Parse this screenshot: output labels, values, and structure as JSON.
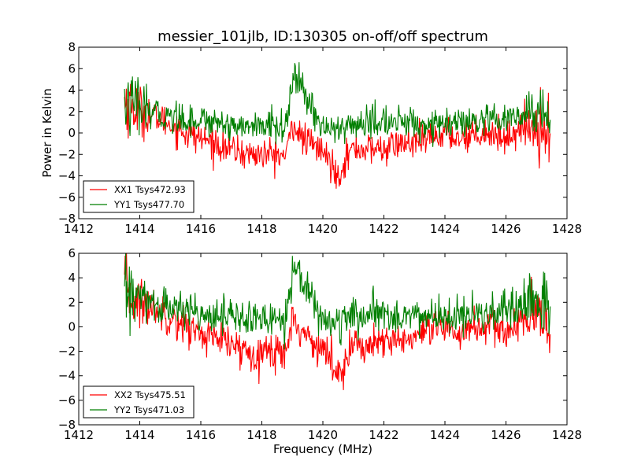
{
  "chart_data": [
    {
      "type": "line",
      "title": "messier_101jlb, ID:130305 on-off/off spectrum",
      "xlabel": "",
      "ylabel": "Power in Kelvin",
      "xlim": [
        1412,
        1428
      ],
      "ylim": [
        -8,
        8
      ],
      "xticks": [
        1412,
        1414,
        1416,
        1418,
        1420,
        1422,
        1424,
        1426,
        1428
      ],
      "yticks": [
        -8,
        -6,
        -4,
        -2,
        0,
        2,
        4,
        6,
        8
      ],
      "xtick_labels": [
        "1412",
        "1414",
        "1416",
        "1418",
        "1420",
        "1422",
        "1424",
        "1426",
        "1428"
      ],
      "ytick_labels": [
        "−8",
        "−6",
        "−4",
        "−2",
        "0",
        "2",
        "4",
        "6",
        "8"
      ],
      "legend_position": "lower-left",
      "series": [
        {
          "name": "XX1 Tsys472.93",
          "color": "#ff0000",
          "x": [
            1413.5,
            1414.0,
            1414.5,
            1415.0,
            1415.5,
            1416.0,
            1416.5,
            1417.0,
            1417.5,
            1418.0,
            1418.5,
            1418.8,
            1419.0,
            1419.3,
            1419.6,
            1419.9,
            1420.2,
            1420.5,
            1420.8,
            1421.0,
            1421.5,
            1422.0,
            1422.5,
            1423.0,
            1423.5,
            1424.0,
            1424.5,
            1425.0,
            1425.5,
            1426.0,
            1426.5,
            1427.0,
            1427.45
          ],
          "values": [
            3.0,
            2.0,
            1.5,
            0.8,
            0.0,
            -0.5,
            -1.0,
            -1.5,
            -2.0,
            -2.0,
            -2.0,
            -2.2,
            1.0,
            -0.5,
            -1.0,
            -1.5,
            -2.5,
            -4.0,
            -2.0,
            -1.5,
            -1.5,
            -1.5,
            -1.0,
            -1.0,
            -0.5,
            0.0,
            -0.5,
            0.0,
            0.0,
            -0.5,
            0.5,
            0.5,
            0.5
          ]
        },
        {
          "name": "YY1 Tsys477.70",
          "color": "#007f00",
          "x": [
            1413.5,
            1414.0,
            1414.5,
            1415.0,
            1415.5,
            1416.0,
            1416.5,
            1417.0,
            1417.5,
            1418.0,
            1418.5,
            1418.8,
            1419.0,
            1419.3,
            1419.6,
            1419.9,
            1420.2,
            1420.5,
            1420.8,
            1421.0,
            1421.5,
            1422.0,
            1422.5,
            1423.0,
            1423.5,
            1424.0,
            1424.5,
            1425.0,
            1425.5,
            1426.0,
            1426.5,
            1427.0,
            1427.45
          ],
          "values": [
            2.8,
            2.2,
            1.8,
            1.5,
            1.3,
            1.2,
            1.1,
            0.8,
            0.6,
            0.6,
            0.7,
            0.7,
            5.0,
            4.2,
            2.5,
            1.0,
            0.4,
            0.2,
            0.6,
            0.8,
            0.9,
            1.0,
            1.0,
            0.9,
            0.8,
            0.8,
            0.8,
            0.9,
            1.0,
            1.2,
            1.5,
            1.8,
            2.0
          ]
        }
      ]
    },
    {
      "type": "line",
      "title": "",
      "xlabel": "Frequency (MHz)",
      "ylabel": "",
      "xlim": [
        1412,
        1428
      ],
      "ylim": [
        -8,
        6
      ],
      "xticks": [
        1412,
        1414,
        1416,
        1418,
        1420,
        1422,
        1424,
        1426,
        1428
      ],
      "yticks": [
        -8,
        -6,
        -4,
        -2,
        0,
        2,
        4,
        6
      ],
      "xtick_labels": [
        "1412",
        "1414",
        "1416",
        "1418",
        "1420",
        "1422",
        "1424",
        "1426",
        "1428"
      ],
      "ytick_labels": [
        "−8",
        "−6",
        "−4",
        "−2",
        "0",
        "2",
        "4",
        "6"
      ],
      "legend_position": "lower-left",
      "series": [
        {
          "name": "XX2 Tsys475.51",
          "color": "#ff0000",
          "x": [
            1413.5,
            1414.0,
            1414.5,
            1415.0,
            1415.5,
            1416.0,
            1416.5,
            1417.0,
            1417.5,
            1418.0,
            1418.5,
            1418.8,
            1419.0,
            1419.3,
            1419.6,
            1419.9,
            1420.2,
            1420.5,
            1420.8,
            1421.0,
            1421.5,
            1422.0,
            1422.5,
            1423.0,
            1423.5,
            1424.0,
            1424.5,
            1425.0,
            1425.5,
            1426.0,
            1426.5,
            1427.0,
            1427.45
          ],
          "values": [
            3.0,
            2.0,
            1.5,
            0.8,
            0.0,
            -0.5,
            -1.0,
            -1.5,
            -2.0,
            -2.0,
            -2.0,
            -2.2,
            1.0,
            -0.5,
            -1.0,
            -1.5,
            -2.5,
            -4.0,
            -2.0,
            -1.5,
            -1.5,
            -1.5,
            -1.0,
            -1.0,
            -0.5,
            0.0,
            -0.5,
            0.0,
            0.0,
            -0.5,
            0.5,
            0.5,
            0.5
          ]
        },
        {
          "name": "YY2 Tsys471.03",
          "color": "#007f00",
          "x": [
            1413.5,
            1414.0,
            1414.5,
            1415.0,
            1415.5,
            1416.0,
            1416.5,
            1417.0,
            1417.5,
            1418.0,
            1418.5,
            1418.8,
            1419.0,
            1419.3,
            1419.6,
            1419.9,
            1420.2,
            1420.5,
            1420.8,
            1421.0,
            1421.5,
            1422.0,
            1422.5,
            1423.0,
            1423.5,
            1424.0,
            1424.5,
            1425.0,
            1425.5,
            1426.0,
            1426.5,
            1427.0,
            1427.45
          ],
          "values": [
            2.8,
            2.2,
            1.8,
            1.5,
            1.3,
            1.2,
            1.1,
            0.8,
            0.6,
            0.6,
            0.7,
            0.7,
            5.0,
            4.2,
            2.5,
            1.0,
            0.4,
            0.2,
            0.6,
            0.8,
            0.9,
            1.0,
            1.0,
            0.9,
            0.8,
            0.8,
            0.8,
            0.9,
            1.0,
            1.2,
            1.5,
            1.8,
            2.0
          ]
        }
      ]
    }
  ]
}
